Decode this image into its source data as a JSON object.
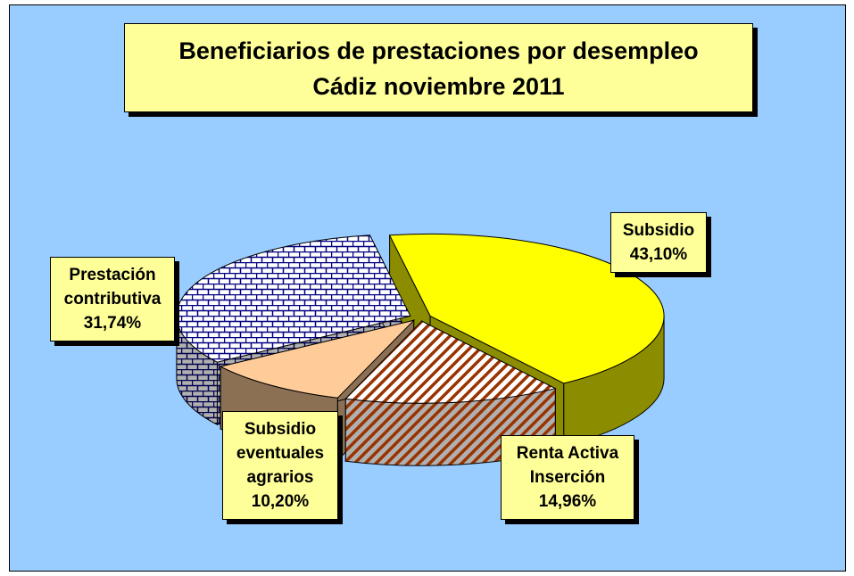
{
  "chart_data": {
    "type": "pie",
    "title": "Beneficiarios de prestaciones por desempleo",
    "subtitle": "Cádiz noviembre 2011",
    "categories": [
      "Subsidio",
      "Renta Activa Inserción",
      "Subsidio eventuales agrarios",
      "Prestación contributiva"
    ],
    "values": [
      43.1,
      14.96,
      10.2,
      31.74
    ],
    "value_labels": [
      "43,10%",
      "14,96%",
      "10,20%",
      "31,74%"
    ],
    "colors": [
      "#ffff00",
      "#993300",
      "#ffcc99",
      "#000080"
    ],
    "patterns": [
      "solid",
      "diagonal",
      "solid",
      "brick"
    ]
  }
}
